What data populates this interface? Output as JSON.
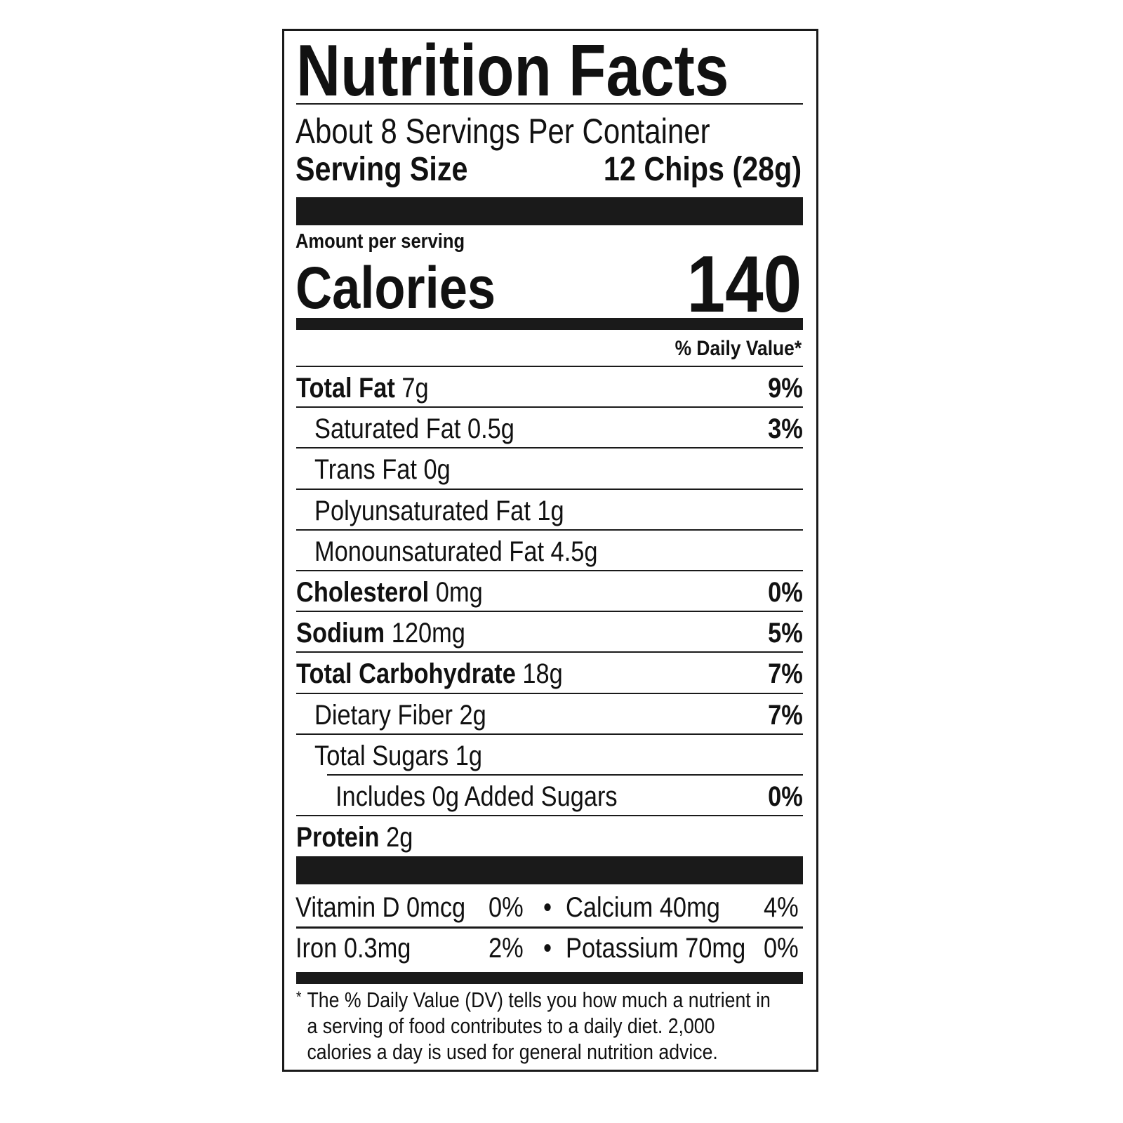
{
  "title": "Nutrition Facts",
  "servings_per_container": "About 8 Servings Per Container",
  "serving_size": {
    "label": "Serving Size",
    "value": "12 Chips (28g)"
  },
  "amount_per_serving": "Amount per serving",
  "calories": {
    "label": "Calories",
    "value": "140"
  },
  "daily_value_header": "% Daily Value*",
  "nutrients": [
    {
      "name": "Total Fat",
      "amount": "7g",
      "dv": "9%"
    },
    {
      "name": "Saturated Fat 0.5g",
      "amount": "",
      "dv": "3%"
    },
    {
      "name": "Trans Fat 0g",
      "amount": "",
      "dv": ""
    },
    {
      "name": "Polyunsaturated Fat 1g",
      "amount": "",
      "dv": ""
    },
    {
      "name": "Monounsaturated Fat 4.5g",
      "amount": "",
      "dv": ""
    },
    {
      "name": "Cholesterol",
      "amount": "0mg",
      "dv": "0%"
    },
    {
      "name": "Sodium",
      "amount": "120mg",
      "dv": "5%"
    },
    {
      "name": "Total Carbohydrate",
      "amount": "18g",
      "dv": "7%"
    },
    {
      "name": "Dietary Fiber 2g",
      "amount": "",
      "dv": "7%"
    },
    {
      "name": "Total Sugars 1g",
      "amount": "",
      "dv": ""
    },
    {
      "name": "Includes 0g Added Sugars",
      "amount": "",
      "dv": "0%"
    },
    {
      "name": "Protein",
      "amount": "2g",
      "dv": ""
    }
  ],
  "vitamins": [
    {
      "name": "Vitamin D 0mcg",
      "dv": "0%"
    },
    {
      "name": "Calcium 40mg",
      "dv": "4%"
    },
    {
      "name": "Iron 0.3mg",
      "dv": "2%"
    },
    {
      "name": "Potassium 70mg",
      "dv": "0%"
    }
  ],
  "bullet": "•",
  "footnote": {
    "marker": "*",
    "text": "The % Daily Value (DV) tells you how much a nutrient in a serving of food contributes to a daily diet. 2,000 calories a day is used for general nutrition advice."
  }
}
